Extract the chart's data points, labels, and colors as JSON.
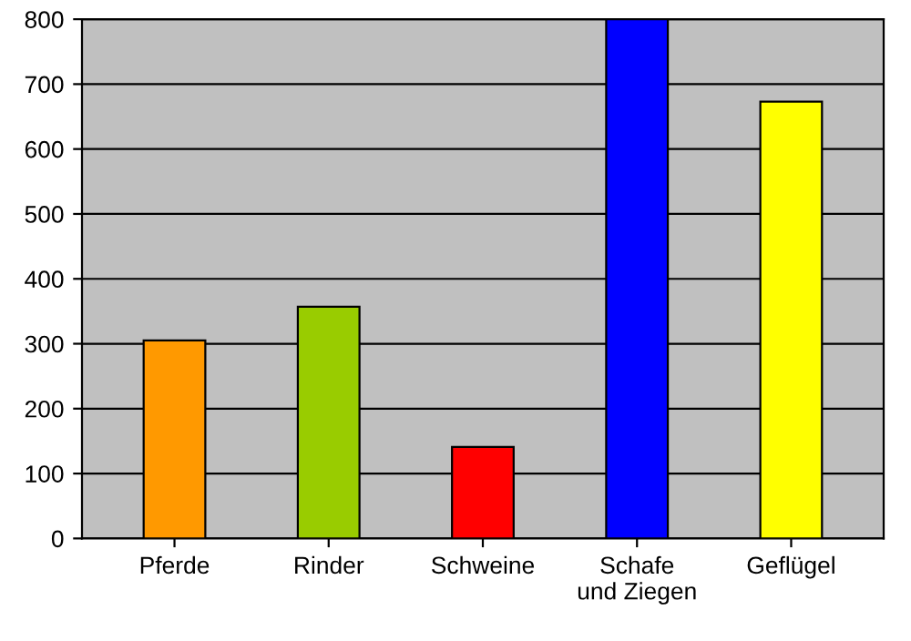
{
  "chart_data": {
    "type": "bar",
    "categories": [
      "Pferde",
      "Rinder",
      "Schweine",
      "Schafe\nund Ziegen",
      "Geflügel"
    ],
    "values": [
      305,
      357,
      141,
      800,
      673
    ],
    "colors": [
      "#ff9900",
      "#99cc00",
      "#ff0000",
      "#0000ff",
      "#ffff00"
    ],
    "ylim": [
      0,
      800
    ],
    "yticks": [
      0,
      100,
      200,
      300,
      400,
      500,
      600,
      700,
      800
    ],
    "grid": "y"
  }
}
